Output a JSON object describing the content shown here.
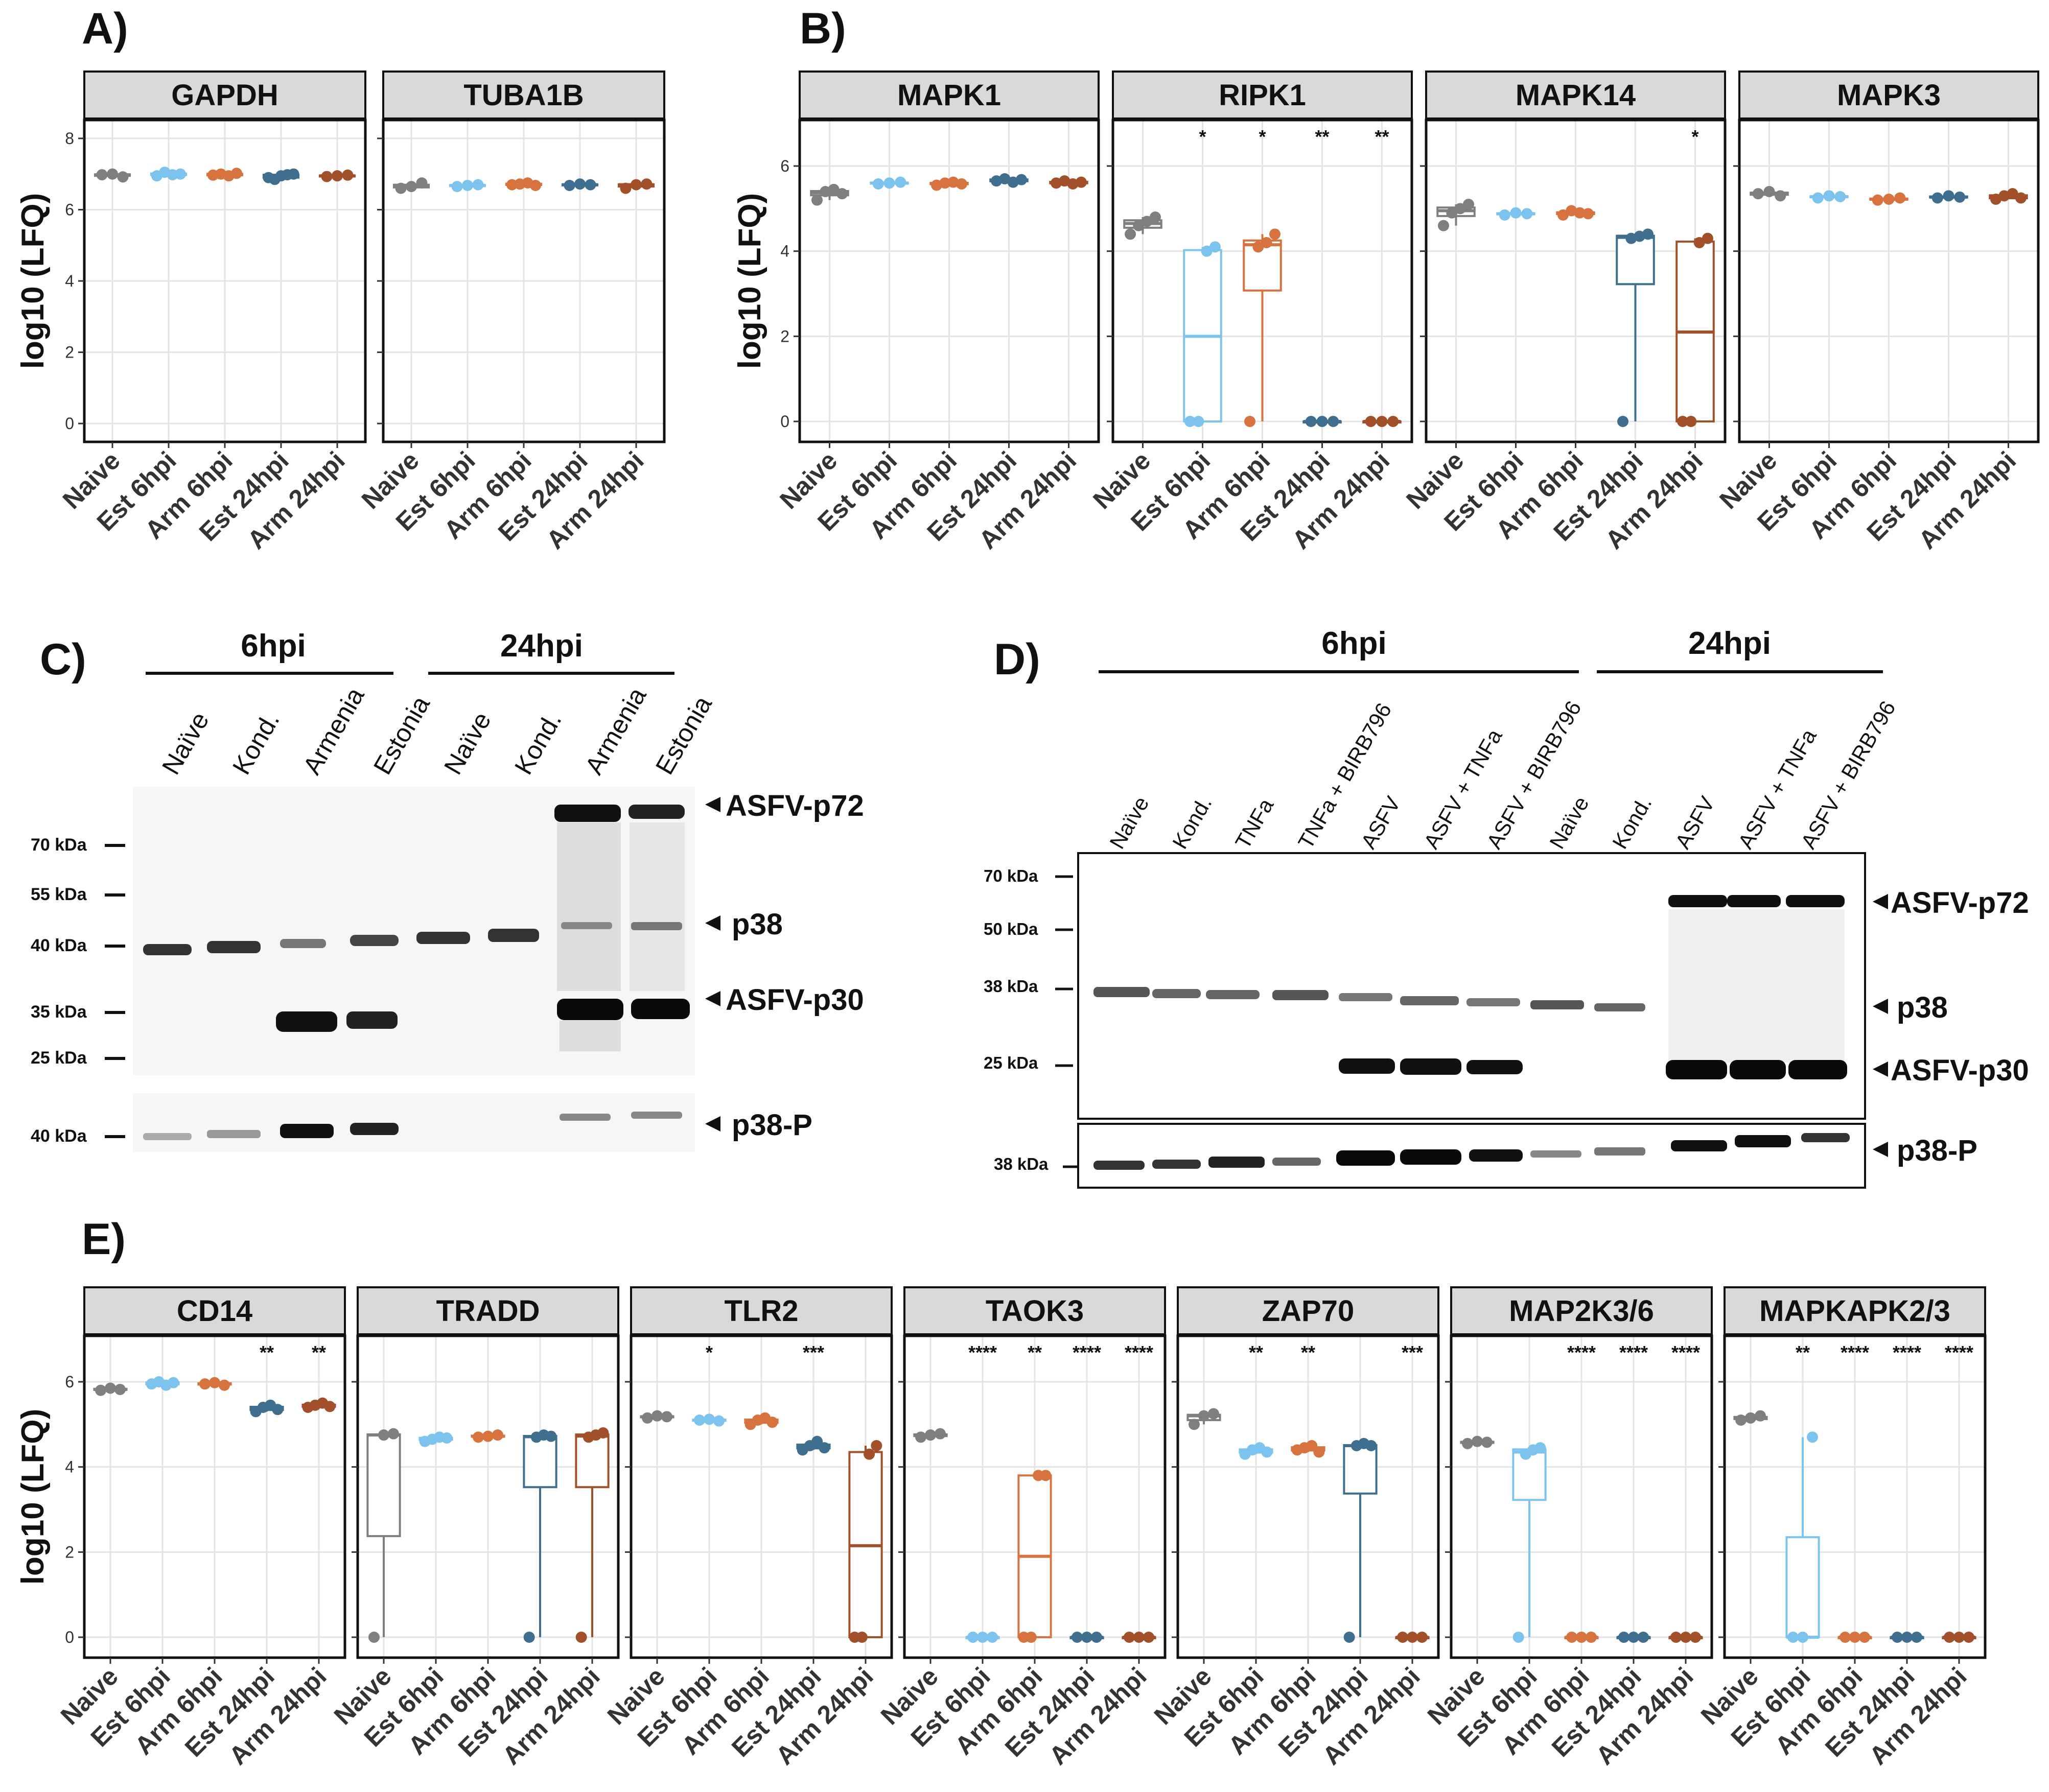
{
  "colors": {
    "naive": "#7f7f7f",
    "est6": "#7cc4ee",
    "arm6": "#d6733f",
    "est24": "#3f6e8f",
    "arm24": "#a2502a",
    "grid": "#e4e4e4",
    "strip": "#d9d9d9"
  },
  "panels": {
    "A": {
      "letter": "A)",
      "ylabel": "log10 (LFQ)",
      "yticks": [
        "0",
        "2",
        "4",
        "6",
        "8"
      ],
      "groups": [
        "Naive",
        "Est 6hpi",
        "Arm 6hpi",
        "Est 24hpi",
        "Arm 24hpi"
      ],
      "facets": [
        {
          "name": "GAPDH",
          "stars": [
            "",
            "",
            "",
            "",
            ""
          ]
        },
        {
          "name": "TUBA1B",
          "stars": [
            "",
            "",
            "",
            "",
            ""
          ]
        }
      ]
    },
    "B": {
      "letter": "B)",
      "ylabel": "log10 (LFQ)",
      "yticks": [
        "0",
        "2",
        "4",
        "6"
      ],
      "groups": [
        "Naive",
        "Est 6hpi",
        "Arm 6hpi",
        "Est 24hpi",
        "Arm 24hpi"
      ],
      "facets": [
        {
          "name": "MAPK1",
          "stars": [
            "",
            "",
            "",
            "",
            ""
          ]
        },
        {
          "name": "RIPK1",
          "stars": [
            "",
            "*",
            "*",
            "**",
            "**"
          ]
        },
        {
          "name": "MAPK14",
          "stars": [
            "",
            "",
            "",
            "",
            "*"
          ]
        },
        {
          "name": "MAPK3",
          "stars": [
            "",
            "",
            "",
            "",
            ""
          ]
        }
      ]
    },
    "C": {
      "letter": "C)",
      "time_labels": [
        "6hpi",
        "24hpi"
      ],
      "lanes": [
        "Naïve",
        "Kond.",
        "Armenia",
        "Estonia",
        "Naïve",
        "Kond.",
        "Armenia",
        "Estonia"
      ],
      "markers": [
        "70 kDa",
        "55 kDa",
        "40 kDa",
        "35 kDa",
        "25 kDa"
      ],
      "marker_lower": "40 kDa",
      "band_labels": [
        "ASFV-p72",
        "p38",
        "ASFV-p30",
        "p38-P"
      ]
    },
    "D": {
      "letter": "D)",
      "time_labels": [
        "6hpi",
        "24hpi"
      ],
      "lanes": [
        "Naïve",
        "Kond.",
        "TNFa",
        "TNFa + BIRB796",
        "ASFV",
        "ASFV + TNFa",
        "ASFV + BIRB796",
        "Naïve",
        "Kond.",
        "ASFV",
        "ASFV + TNFa",
        "ASFV + BIRB796"
      ],
      "markers": [
        "70 kDa",
        "50 kDa",
        "38 kDa",
        "25 kDa"
      ],
      "marker_lower": "38 kDa",
      "band_labels": [
        "ASFV-p72",
        "p38",
        "ASFV-p30",
        "p38-P"
      ]
    },
    "E": {
      "letter": "E)",
      "ylabel": "log10 (LFQ)",
      "yticks": [
        "0",
        "2",
        "4",
        "6"
      ],
      "groups": [
        "Naive",
        "Est 6hpi",
        "Arm 6hpi",
        "Est 24hpi",
        "Arm 24hpi"
      ],
      "facets": [
        {
          "name": "CD14",
          "stars": [
            "",
            "",
            "",
            "**",
            "**"
          ]
        },
        {
          "name": "TRADD",
          "stars": [
            "",
            "",
            "",
            "",
            ""
          ]
        },
        {
          "name": "TLR2",
          "stars": [
            "",
            "*",
            "",
            "***",
            ""
          ]
        },
        {
          "name": "TAOK3",
          "stars": [
            "",
            "****",
            "**",
            "****",
            "****"
          ]
        },
        {
          "name": "ZAP70",
          "stars": [
            "",
            "**",
            "**",
            "",
            "***"
          ]
        },
        {
          "name": "MAP2K3/6",
          "stars": [
            "",
            "",
            "****",
            "****",
            "****"
          ]
        },
        {
          "name": "MAPKAPK2/3",
          "stars": [
            "",
            "**",
            "****",
            "****",
            "****"
          ]
        }
      ]
    }
  },
  "chart_data": [
    {
      "type": "box",
      "panel": "A",
      "ylabel": "log10 (LFQ)",
      "ylim": [
        -0.3,
        8.3
      ],
      "categories": [
        "Naive",
        "Est 6hpi",
        "Arm 6hpi",
        "Est 24hpi",
        "Arm 24hpi"
      ],
      "facets": [
        {
          "name": "GAPDH",
          "series": [
            {
              "group": "Naive",
              "values": [
                6.98,
                7.0,
                6.92
              ]
            },
            {
              "group": "Est 6hpi",
              "values": [
                6.95,
                7.05,
                6.98,
                7.0
              ]
            },
            {
              "group": "Arm 6hpi",
              "values": [
                6.97,
                7.0,
                6.95,
                7.02
              ]
            },
            {
              "group": "Est 24hpi",
              "values": [
                6.9,
                6.85,
                6.95,
                6.98,
                7.0
              ]
            },
            {
              "group": "Arm 24hpi",
              "values": [
                6.93,
                6.95,
                6.97
              ]
            }
          ]
        },
        {
          "name": "TUBA1B",
          "series": [
            {
              "group": "Naive",
              "values": [
                6.6,
                6.65,
                6.75
              ]
            },
            {
              "group": "Est 6hpi",
              "values": [
                6.65,
                6.68,
                6.7
              ]
            },
            {
              "group": "Arm 6hpi",
              "values": [
                6.7,
                6.72,
                6.75,
                6.68
              ]
            },
            {
              "group": "Est 24hpi",
              "values": [
                6.68,
                6.72,
                6.7
              ]
            },
            {
              "group": "Arm 24hpi",
              "values": [
                6.6,
                6.7,
                6.72
              ]
            }
          ]
        }
      ]
    },
    {
      "type": "box",
      "panel": "B",
      "ylabel": "log10 (LFQ)",
      "ylim": [
        -0.3,
        6.9
      ],
      "categories": [
        "Naive",
        "Est 6hpi",
        "Arm 6hpi",
        "Est 24hpi",
        "Arm 24hpi"
      ],
      "facets": [
        {
          "name": "MAPK1",
          "series": [
            {
              "group": "Naive",
              "values": [
                5.2,
                5.4,
                5.45,
                5.35
              ]
            },
            {
              "group": "Est 6hpi",
              "values": [
                5.58,
                5.6,
                5.62
              ]
            },
            {
              "group": "Arm 6hpi",
              "values": [
                5.55,
                5.6,
                5.62,
                5.58
              ]
            },
            {
              "group": "Est 24hpi",
              "values": [
                5.65,
                5.7,
                5.62,
                5.68
              ]
            },
            {
              "group": "Arm 24hpi",
              "values": [
                5.6,
                5.65,
                5.58,
                5.62
              ]
            }
          ]
        },
        {
          "name": "RIPK1",
          "series": [
            {
              "group": "Naive",
              "values": [
                4.4,
                4.6,
                4.7,
                4.8
              ]
            },
            {
              "group": "Est 6hpi",
              "values": [
                0,
                0,
                4.0,
                4.1
              ]
            },
            {
              "group": "Arm 6hpi",
              "values": [
                0,
                4.1,
                4.2,
                4.4
              ]
            },
            {
              "group": "Est 24hpi",
              "values": [
                0,
                0,
                0
              ]
            },
            {
              "group": "Arm 24hpi",
              "values": [
                0,
                0,
                0
              ]
            }
          ]
        },
        {
          "name": "MAPK14",
          "series": [
            {
              "group": "Naive",
              "values": [
                4.6,
                4.9,
                5.0,
                5.1
              ]
            },
            {
              "group": "Est 6hpi",
              "values": [
                4.85,
                4.9,
                4.88
              ]
            },
            {
              "group": "Arm 6hpi",
              "values": [
                4.85,
                4.95,
                4.9,
                4.88
              ]
            },
            {
              "group": "Est 24hpi",
              "values": [
                0,
                4.3,
                4.35,
                4.4
              ]
            },
            {
              "group": "Arm 24hpi",
              "values": [
                0,
                0,
                4.2,
                4.3
              ]
            }
          ]
        },
        {
          "name": "MAPK3",
          "series": [
            {
              "group": "Naive",
              "values": [
                5.35,
                5.4,
                5.3
              ]
            },
            {
              "group": "Est 6hpi",
              "values": [
                5.25,
                5.3,
                5.28
              ]
            },
            {
              "group": "Arm 6hpi",
              "values": [
                5.2,
                5.22,
                5.25
              ]
            },
            {
              "group": "Est 24hpi",
              "values": [
                5.25,
                5.3,
                5.27
              ]
            },
            {
              "group": "Arm 24hpi",
              "values": [
                5.22,
                5.3,
                5.35,
                5.25
              ]
            }
          ]
        }
      ]
    },
    {
      "type": "box",
      "panel": "E",
      "ylabel": "log10 (LFQ)",
      "ylim": [
        -0.3,
        6.9
      ],
      "categories": [
        "Naive",
        "Est 6hpi",
        "Arm 6hpi",
        "Est 24hpi",
        "Arm 24hpi"
      ],
      "facets": [
        {
          "name": "CD14",
          "series": [
            {
              "group": "Naive",
              "values": [
                5.8,
                5.85,
                5.82
              ]
            },
            {
              "group": "Est 6hpi",
              "values": [
                5.95,
                6.0,
                5.92,
                5.98
              ]
            },
            {
              "group": "Arm 6hpi",
              "values": [
                5.95,
                5.98,
                5.92
              ]
            },
            {
              "group": "Est 24hpi",
              "values": [
                5.3,
                5.4,
                5.45,
                5.35
              ]
            },
            {
              "group": "Arm 24hpi",
              "values": [
                5.4,
                5.45,
                5.5,
                5.42
              ]
            }
          ]
        },
        {
          "name": "TRADD",
          "series": [
            {
              "group": "Naive",
              "values": [
                0,
                4.75,
                4.78
              ]
            },
            {
              "group": "Est 6hpi",
              "values": [
                4.6,
                4.65,
                4.7,
                4.68
              ]
            },
            {
              "group": "Arm 6hpi",
              "values": [
                4.7,
                4.72,
                4.75
              ]
            },
            {
              "group": "Est 24hpi",
              "values": [
                0,
                4.7,
                4.75,
                4.72
              ]
            },
            {
              "group": "Arm 24hpi",
              "values": [
                0,
                4.7,
                4.75,
                4.8
              ]
            }
          ]
        },
        {
          "name": "TLR2",
          "series": [
            {
              "group": "Naive",
              "values": [
                5.15,
                5.2,
                5.18
              ]
            },
            {
              "group": "Est 6hpi",
              "values": [
                5.1,
                5.12,
                5.08
              ]
            },
            {
              "group": "Arm 6hpi",
              "values": [
                5.0,
                5.1,
                5.15,
                5.05
              ]
            },
            {
              "group": "Est 24hpi",
              "values": [
                4.4,
                4.5,
                4.6,
                4.45
              ]
            },
            {
              "group": "Arm 24hpi",
              "values": [
                0,
                0,
                4.3,
                4.5
              ]
            }
          ]
        },
        {
          "name": "TAOK3",
          "series": [
            {
              "group": "Naive",
              "values": [
                4.7,
                4.75,
                4.78
              ]
            },
            {
              "group": "Est 6hpi",
              "values": [
                0,
                0,
                0
              ]
            },
            {
              "group": "Arm 6hpi",
              "values": [
                0,
                0,
                3.8,
                3.8
              ]
            },
            {
              "group": "Est 24hpi",
              "values": [
                0,
                0,
                0
              ]
            },
            {
              "group": "Arm 24hpi",
              "values": [
                0,
                0,
                0
              ]
            }
          ]
        },
        {
          "name": "ZAP70",
          "series": [
            {
              "group": "Naive",
              "values": [
                5.0,
                5.2,
                5.25
              ]
            },
            {
              "group": "Est 6hpi",
              "values": [
                4.3,
                4.4,
                4.45,
                4.35
              ]
            },
            {
              "group": "Arm 6hpi",
              "values": [
                4.4,
                4.45,
                4.5,
                4.35
              ]
            },
            {
              "group": "Est 24hpi",
              "values": [
                0,
                4.5,
                4.55,
                4.5
              ]
            },
            {
              "group": "Arm 24hpi",
              "values": [
                0,
                0,
                0
              ]
            }
          ]
        },
        {
          "name": "MAP2K3/6",
          "series": [
            {
              "group": "Naive",
              "values": [
                4.55,
                4.6,
                4.58
              ]
            },
            {
              "group": "Est 6hpi",
              "values": [
                0,
                4.3,
                4.4,
                4.45
              ]
            },
            {
              "group": "Arm 6hpi",
              "values": [
                0,
                0,
                0
              ]
            },
            {
              "group": "Est 24hpi",
              "values": [
                0,
                0,
                0
              ]
            },
            {
              "group": "Arm 24hpi",
              "values": [
                0,
                0,
                0
              ]
            }
          ]
        },
        {
          "name": "MAPKAPK2/3",
          "series": [
            {
              "group": "Naive",
              "values": [
                5.1,
                5.15,
                5.2
              ]
            },
            {
              "group": "Est 6hpi",
              "values": [
                0,
                0,
                4.7
              ]
            },
            {
              "group": "Arm 6hpi",
              "values": [
                0,
                0,
                0
              ]
            },
            {
              "group": "Est 24hpi",
              "values": [
                0,
                0,
                0
              ]
            },
            {
              "group": "Arm 24hpi",
              "values": [
                0,
                0,
                0
              ]
            }
          ]
        }
      ]
    }
  ]
}
